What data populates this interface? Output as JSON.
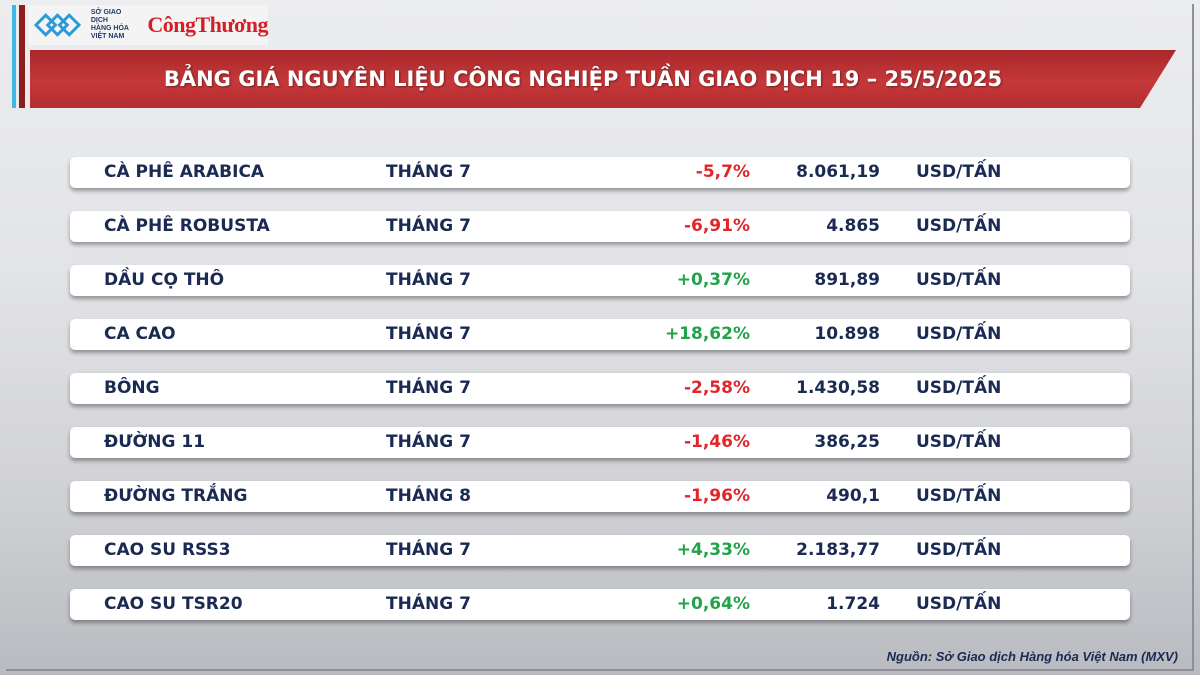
{
  "logo": {
    "mxv_lines": [
      "SỞ GIAO DỊCH",
      "HÀNG HÓA",
      "VIỆT NAM"
    ],
    "brand": "CôngThương"
  },
  "header": {
    "title": "BẢNG GIÁ NGUYÊN LIỆU CÔNG NGHIỆP TUẦN GIAO DỊCH 19 – 25/5/2025"
  },
  "colors": {
    "negative": "#e0262a",
    "positive": "#22a34a",
    "banner": "#b52d2f",
    "text": "#1a2a52"
  },
  "rows": [
    {
      "name": "CÀ PHÊ ARABICA",
      "month": "THÁNG 7",
      "change": "-5,7%",
      "price": "8.061,19",
      "unit": "USD/TẤN"
    },
    {
      "name": "CÀ PHÊ ROBUSTA",
      "month": "THÁNG 7",
      "change": "-6,91%",
      "price": "4.865",
      "unit": "USD/TẤN"
    },
    {
      "name": "DẦU CỌ THÔ",
      "month": "THÁNG 7",
      "change": "+0,37%",
      "price": "891,89",
      "unit": "USD/TẤN"
    },
    {
      "name": "CA CAO",
      "month": "THÁNG 7",
      "change": "+18,62%",
      "price": "10.898",
      "unit": "USD/TẤN"
    },
    {
      "name": "BÔNG",
      "month": "THÁNG 7",
      "change": "-2,58%",
      "price": "1.430,58",
      "unit": "USD/TẤN"
    },
    {
      "name": "ĐƯỜNG 11",
      "month": "THÁNG 7",
      "change": "-1,46%",
      "price": "386,25",
      "unit": "USD/TẤN"
    },
    {
      "name": "ĐƯỜNG TRẮNG",
      "month": "THÁNG 8",
      "change": "-1,96%",
      "price": "490,1",
      "unit": "USD/TẤN"
    },
    {
      "name": "CAO SU RSS3",
      "month": "THÁNG 7",
      "change": "+4,33%",
      "price": "2.183,77",
      "unit": "USD/TẤN"
    },
    {
      "name": "CAO SU TSR20",
      "month": "THÁNG 7",
      "change": "+0,64%",
      "price": "1.724",
      "unit": "USD/TẤN"
    }
  ],
  "source": "Nguồn: Sở Giao dịch Hàng hóa Việt Nam (MXV)"
}
